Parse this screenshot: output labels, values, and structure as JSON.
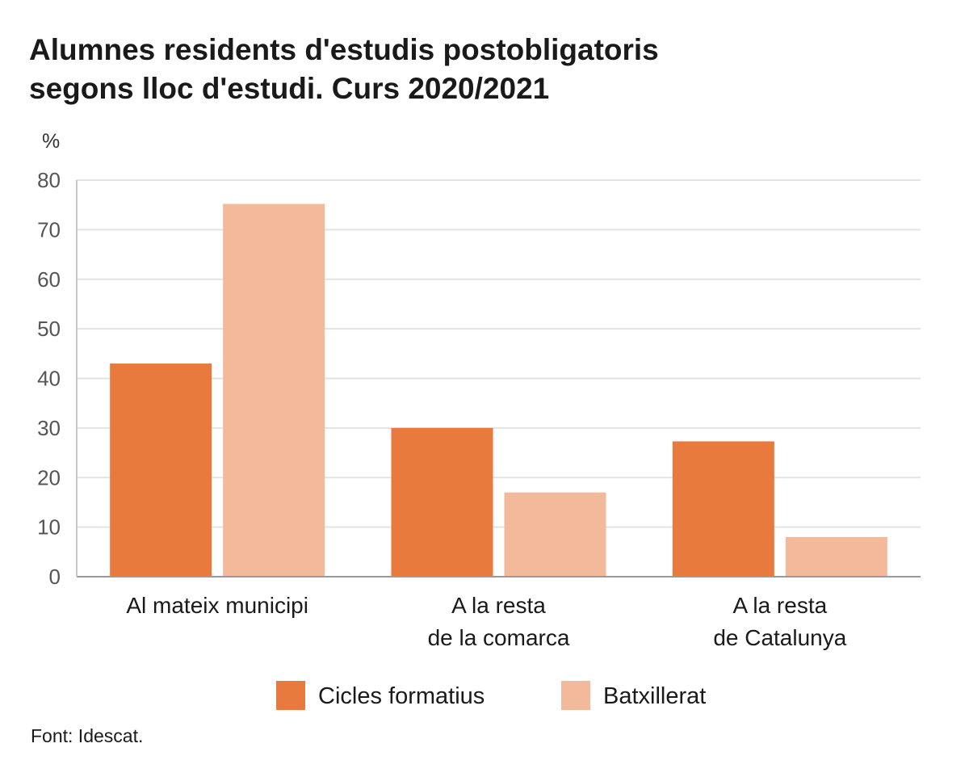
{
  "chart_data": {
    "type": "bar",
    "title_lines": [
      "Alumnes residents d'estudis postobligatoris",
      "segons lloc d'estudi. Curs 2020/2021"
    ],
    "ylabel": "%",
    "ylim": [
      0,
      80
    ],
    "yticks": [
      0,
      10,
      20,
      30,
      40,
      50,
      60,
      70,
      80
    ],
    "grid": true,
    "legend_position": "bottom-center",
    "categories": [
      [
        "Al mateix municipi"
      ],
      [
        "A la resta",
        "de la comarca"
      ],
      [
        "A la resta",
        "de Catalunya"
      ]
    ],
    "series": [
      {
        "name": "Cicles formatius",
        "color": "#e97a3d",
        "values": [
          43,
          30,
          27.3
        ]
      },
      {
        "name": "Batxillerat",
        "color": "#f3b99b",
        "values": [
          75.2,
          17,
          8
        ]
      }
    ],
    "source": "Font: Idescat."
  }
}
